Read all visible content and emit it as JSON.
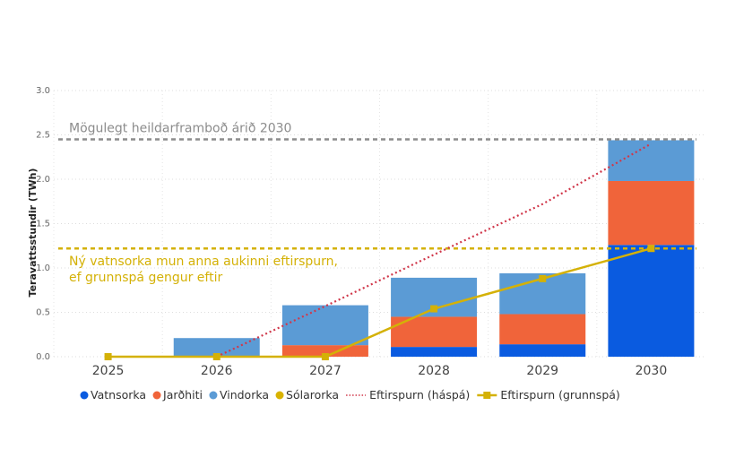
{
  "chart_data": {
    "type": "bar",
    "stacked": true,
    "categories": [
      "2025",
      "2026",
      "2027",
      "2028",
      "2029",
      "2030"
    ],
    "ylabel": "Teravattsstundir (TWh)",
    "ylim": [
      0,
      3.0
    ],
    "yticks": [
      "0.0",
      "0.5",
      "1.0",
      "1.5",
      "2.0",
      "2.5",
      "3.0"
    ],
    "grid": true,
    "legend_position": "bottom",
    "series": [
      {
        "name": "Vatnsorka",
        "kind": "bar",
        "color": "#0A5BE0",
        "values": [
          0,
          0,
          0,
          0.11,
          0.14,
          1.26
        ]
      },
      {
        "name": "Jarðhiti",
        "kind": "bar",
        "color": "#F0643A",
        "values": [
          0,
          0,
          0.13,
          0.34,
          0.34,
          0.72
        ]
      },
      {
        "name": "Vindorka",
        "kind": "bar",
        "color": "#5B9BD5",
        "values": [
          0,
          0.21,
          0.45,
          0.44,
          0.46,
          0.46
        ]
      },
      {
        "name": "Sólarorka",
        "kind": "bar",
        "color": "#D9B300",
        "values": [
          0,
          0,
          0,
          0,
          0,
          0
        ]
      },
      {
        "name": "Eftirspurn (háspá)",
        "kind": "line-dotted",
        "color": "#D0374A",
        "values": [
          null,
          0,
          0.57,
          1.15,
          1.72,
          2.4
        ]
      },
      {
        "name": "Eftirspurn (grunnspá)",
        "kind": "line-marker",
        "color": "#D4B106",
        "values": [
          0,
          0,
          0,
          0.54,
          0.88,
          1.22
        ]
      }
    ],
    "reference_lines": [
      {
        "value": 2.45,
        "color": "#8C8C8C",
        "label": "Mögulegt heildarframboð árið 2030"
      },
      {
        "value": 1.22,
        "color": "#D4B106",
        "label_lines": [
          "Ný vatnsorka mun anna aukinni eftirspurn,",
          "ef grunnspá gengur eftir"
        ]
      }
    ]
  }
}
